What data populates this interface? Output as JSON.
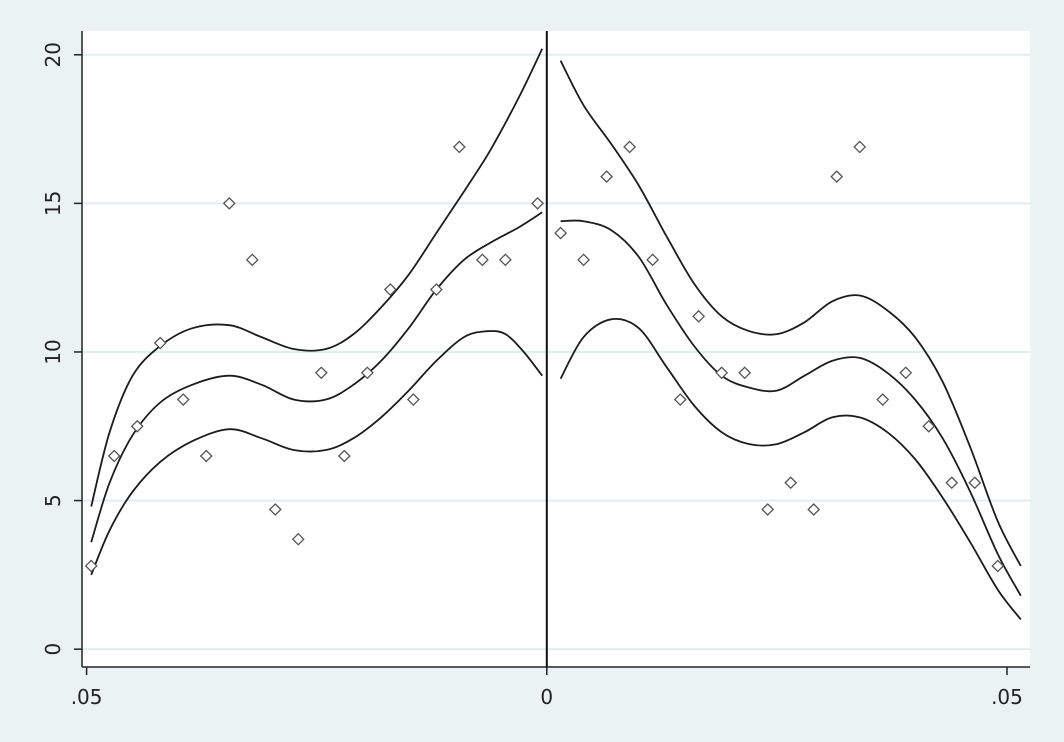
{
  "chart_data": {
    "type": "scatter",
    "title": "",
    "xlabel": "",
    "ylabel": "",
    "xlim": [
      -0.0505,
      0.0525
    ],
    "ylim": [
      -0.6,
      20.8
    ],
    "x_ticks": [
      -0.05,
      0,
      0.05
    ],
    "x_tick_labels": [
      ".05",
      "0",
      ".05"
    ],
    "y_ticks": [
      0,
      5,
      10,
      15,
      20
    ],
    "y_tick_labels": [
      "0",
      "5",
      "10",
      "15",
      "20"
    ],
    "grid": true,
    "cutoff": 0,
    "colors": {
      "outer_bg": "#eaf2f3",
      "plot_bg": "#ffffff",
      "grid": "#e1edef",
      "line": "#1c1c1c",
      "marker": "#555555"
    },
    "points_left": [
      [
        -0.0495,
        2.8
      ],
      [
        -0.047,
        6.5
      ],
      [
        -0.0445,
        7.5
      ],
      [
        -0.042,
        10.3
      ],
      [
        -0.0395,
        8.4
      ],
      [
        -0.037,
        6.5
      ],
      [
        -0.0345,
        15.0
      ],
      [
        -0.032,
        13.1
      ],
      [
        -0.0295,
        4.7
      ],
      [
        -0.027,
        3.7
      ],
      [
        -0.0245,
        9.3
      ],
      [
        -0.022,
        6.5
      ],
      [
        -0.0195,
        9.3
      ],
      [
        -0.017,
        12.1
      ],
      [
        -0.0145,
        8.4
      ],
      [
        -0.012,
        12.1
      ],
      [
        -0.0095,
        16.9
      ],
      [
        -0.007,
        13.1
      ],
      [
        -0.0045,
        13.1
      ],
      [
        -0.001,
        15.0
      ]
    ],
    "points_right": [
      [
        0.0015,
        14.0
      ],
      [
        0.004,
        13.1
      ],
      [
        0.0065,
        15.9
      ],
      [
        0.009,
        16.9
      ],
      [
        0.0115,
        13.1
      ],
      [
        0.0165,
        11.2
      ],
      [
        0.0145,
        8.4
      ],
      [
        0.019,
        9.3
      ],
      [
        0.0215,
        9.3
      ],
      [
        0.024,
        4.7
      ],
      [
        0.0265,
        5.6
      ],
      [
        0.029,
        4.7
      ],
      [
        0.0315,
        15.9
      ],
      [
        0.034,
        16.9
      ],
      [
        0.0365,
        8.4
      ],
      [
        0.039,
        9.3
      ],
      [
        0.0415,
        7.5
      ],
      [
        0.044,
        5.6
      ],
      [
        0.0465,
        5.6
      ],
      [
        0.049,
        2.8
      ]
    ],
    "series": [
      {
        "segment": "left",
        "band": "upper",
        "points": [
          [
            -0.0495,
            4.8
          ],
          [
            -0.0475,
            7.3
          ],
          [
            -0.045,
            9.2
          ],
          [
            -0.042,
            10.2
          ],
          [
            -0.0385,
            10.8
          ],
          [
            -0.0345,
            10.9
          ],
          [
            -0.031,
            10.5
          ],
          [
            -0.0275,
            10.1
          ],
          [
            -0.024,
            10.1
          ],
          [
            -0.021,
            10.6
          ],
          [
            -0.018,
            11.5
          ],
          [
            -0.015,
            12.6
          ],
          [
            -0.012,
            14.0
          ],
          [
            -0.009,
            15.4
          ],
          [
            -0.0065,
            16.6
          ],
          [
            -0.0045,
            17.7
          ],
          [
            -0.0025,
            18.9
          ],
          [
            -0.0005,
            20.2
          ]
        ]
      },
      {
        "segment": "left",
        "band": "fit",
        "points": [
          [
            -0.0495,
            3.6
          ],
          [
            -0.0475,
            5.6
          ],
          [
            -0.045,
            7.2
          ],
          [
            -0.042,
            8.3
          ],
          [
            -0.0385,
            8.9
          ],
          [
            -0.0345,
            9.2
          ],
          [
            -0.031,
            8.9
          ],
          [
            -0.0275,
            8.4
          ],
          [
            -0.024,
            8.4
          ],
          [
            -0.021,
            8.9
          ],
          [
            -0.018,
            9.7
          ],
          [
            -0.015,
            10.8
          ],
          [
            -0.012,
            12.1
          ],
          [
            -0.009,
            13.1
          ],
          [
            -0.006,
            13.7
          ],
          [
            -0.003,
            14.2
          ],
          [
            -0.0005,
            14.7
          ]
        ]
      },
      {
        "segment": "left",
        "band": "lower",
        "points": [
          [
            -0.0495,
            2.5
          ],
          [
            -0.0475,
            4.0
          ],
          [
            -0.045,
            5.3
          ],
          [
            -0.042,
            6.3
          ],
          [
            -0.0385,
            7.0
          ],
          [
            -0.0345,
            7.4
          ],
          [
            -0.031,
            7.1
          ],
          [
            -0.0275,
            6.7
          ],
          [
            -0.024,
            6.7
          ],
          [
            -0.021,
            7.1
          ],
          [
            -0.018,
            7.8
          ],
          [
            -0.015,
            8.7
          ],
          [
            -0.012,
            9.7
          ],
          [
            -0.009,
            10.5
          ],
          [
            -0.0065,
            10.7
          ],
          [
            -0.0045,
            10.6
          ],
          [
            -0.0025,
            10.0
          ],
          [
            -0.0005,
            9.2
          ]
        ]
      },
      {
        "segment": "right",
        "band": "upper",
        "points": [
          [
            0.0015,
            19.8
          ],
          [
            0.004,
            18.3
          ],
          [
            0.007,
            17.0
          ],
          [
            0.01,
            15.6
          ],
          [
            0.013,
            13.9
          ],
          [
            0.016,
            12.3
          ],
          [
            0.019,
            11.2
          ],
          [
            0.022,
            10.7
          ],
          [
            0.025,
            10.6
          ],
          [
            0.028,
            11.0
          ],
          [
            0.031,
            11.7
          ],
          [
            0.034,
            11.9
          ],
          [
            0.037,
            11.4
          ],
          [
            0.04,
            10.5
          ],
          [
            0.043,
            9.0
          ],
          [
            0.046,
            6.8
          ],
          [
            0.049,
            4.3
          ],
          [
            0.0515,
            2.8
          ]
        ]
      },
      {
        "segment": "right",
        "band": "fit",
        "points": [
          [
            0.0015,
            14.4
          ],
          [
            0.004,
            14.4
          ],
          [
            0.007,
            14.1
          ],
          [
            0.01,
            13.2
          ],
          [
            0.013,
            11.6
          ],
          [
            0.016,
            10.2
          ],
          [
            0.019,
            9.2
          ],
          [
            0.022,
            8.8
          ],
          [
            0.025,
            8.7
          ],
          [
            0.028,
            9.2
          ],
          [
            0.031,
            9.7
          ],
          [
            0.034,
            9.8
          ],
          [
            0.037,
            9.3
          ],
          [
            0.04,
            8.4
          ],
          [
            0.043,
            7.1
          ],
          [
            0.046,
            5.3
          ],
          [
            0.049,
            3.2
          ],
          [
            0.0515,
            1.8
          ]
        ]
      },
      {
        "segment": "right",
        "band": "lower",
        "points": [
          [
            0.0015,
            9.1
          ],
          [
            0.004,
            10.5
          ],
          [
            0.007,
            11.1
          ],
          [
            0.01,
            10.8
          ],
          [
            0.013,
            9.5
          ],
          [
            0.016,
            8.2
          ],
          [
            0.019,
            7.3
          ],
          [
            0.022,
            6.9
          ],
          [
            0.025,
            6.9
          ],
          [
            0.028,
            7.3
          ],
          [
            0.031,
            7.8
          ],
          [
            0.034,
            7.8
          ],
          [
            0.037,
            7.3
          ],
          [
            0.04,
            6.4
          ],
          [
            0.043,
            5.1
          ],
          [
            0.046,
            3.6
          ],
          [
            0.049,
            2.0
          ],
          [
            0.0515,
            1.0
          ]
        ]
      }
    ]
  }
}
